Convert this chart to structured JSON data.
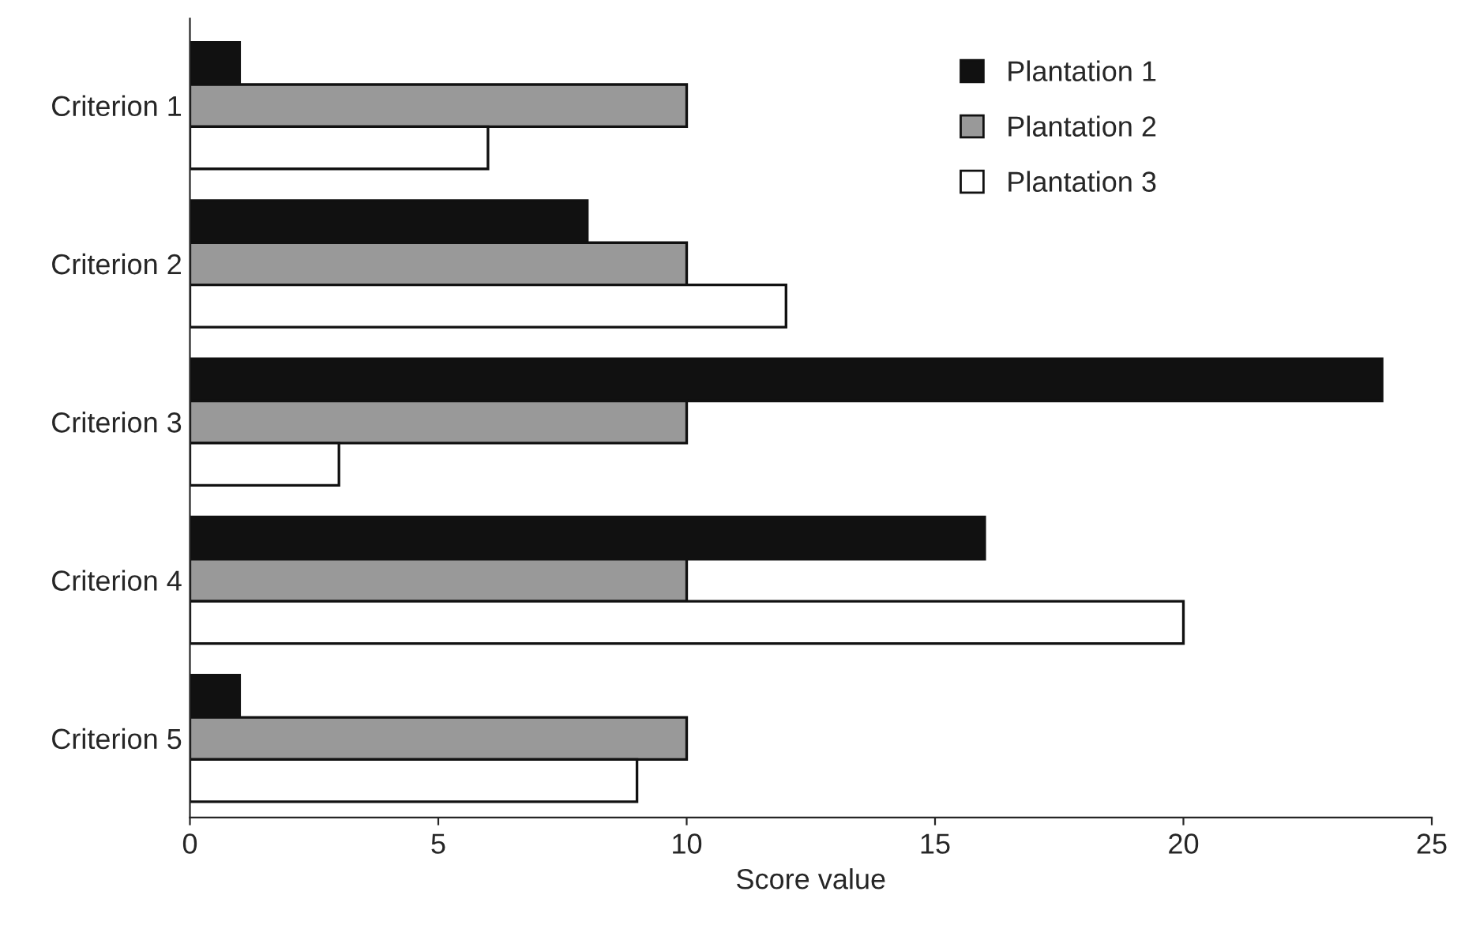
{
  "chart_data": {
    "type": "bar",
    "orientation": "horizontal",
    "xlabel": "Score value",
    "categories": [
      "Criterion 1",
      "Criterion 2",
      "Criterion 3",
      "Criterion 4",
      "Criterion 5"
    ],
    "series": [
      {
        "name": "Plantation 1",
        "color": "#111111",
        "values": [
          1,
          8,
          24,
          16,
          1
        ]
      },
      {
        "name": "Plantation 2",
        "color": "#999999",
        "values": [
          10,
          10,
          10,
          10,
          10
        ]
      },
      {
        "name": "Plantation 3",
        "color": "#ffffff",
        "values": [
          6,
          12,
          3,
          20,
          9
        ]
      }
    ],
    "xlim": [
      0,
      25
    ],
    "xticks": [
      0,
      5,
      10,
      15,
      20,
      25
    ],
    "grid": false,
    "legend": "top right"
  }
}
